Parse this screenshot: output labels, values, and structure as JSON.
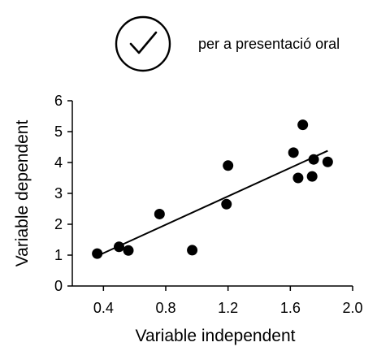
{
  "note": {
    "text": "per a presentació oral",
    "icon": "check-circle-icon"
  },
  "chart_data": {
    "type": "scatter",
    "xlabel": "Variable independent",
    "ylabel": "Variable dependent",
    "xlim": [
      0.2,
      2.0
    ],
    "ylim": [
      0,
      6
    ],
    "xticks": [
      "0.4",
      "0.8",
      "1.2",
      "1.6",
      "2.0"
    ],
    "xtick_values": [
      0.4,
      0.8,
      1.2,
      1.6,
      2.0
    ],
    "yticks": [
      "0",
      "1",
      "2",
      "3",
      "4",
      "5",
      "6"
    ],
    "ytick_values": [
      0,
      1,
      2,
      3,
      4,
      5,
      6
    ],
    "series": [
      {
        "marker": "circle",
        "color": "#000000",
        "points": [
          {
            "x": 0.36,
            "y": 1.05
          },
          {
            "x": 0.5,
            "y": 1.27
          },
          {
            "x": 0.56,
            "y": 1.15
          },
          {
            "x": 0.76,
            "y": 2.33
          },
          {
            "x": 0.97,
            "y": 1.16
          },
          {
            "x": 1.19,
            "y": 2.65
          },
          {
            "x": 1.2,
            "y": 3.9
          },
          {
            "x": 1.62,
            "y": 4.32
          },
          {
            "x": 1.65,
            "y": 3.5
          },
          {
            "x": 1.68,
            "y": 5.22
          },
          {
            "x": 1.74,
            "y": 3.55
          },
          {
            "x": 1.75,
            "y": 4.1
          },
          {
            "x": 1.84,
            "y": 4.02
          }
        ]
      }
    ],
    "trendline": {
      "x": [
        0.35,
        1.84
      ],
      "y": [
        0.95,
        4.38
      ]
    },
    "grid": false,
    "legend": "none"
  }
}
